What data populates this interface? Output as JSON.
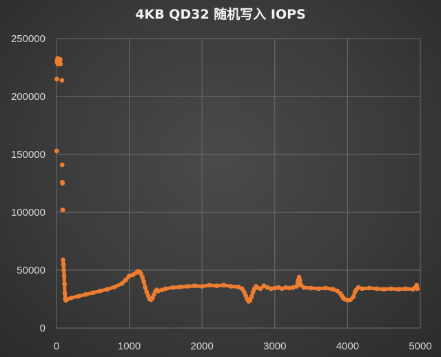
{
  "chart_data": {
    "type": "scatter",
    "title": "4KB QD32 随机写入 IOPS",
    "xlabel": "",
    "ylabel": "",
    "xlim": [
      0,
      5000
    ],
    "ylim": [
      0,
      250000
    ],
    "x_ticks": [
      0,
      1000,
      2000,
      3000,
      4000,
      5000
    ],
    "y_ticks": [
      0,
      50000,
      100000,
      150000,
      200000,
      250000
    ],
    "x_tick_labels": [
      "0",
      "1000",
      "2000",
      "3000",
      "4000",
      "5000"
    ],
    "y_tick_labels": [
      "0",
      "50000",
      "100000",
      "150000",
      "200000",
      "250000"
    ],
    "grid": true,
    "legend": "none",
    "series": [
      {
        "color": "#ed7d31",
        "points": [
          [
            2,
            153000
          ],
          [
            5,
            215000
          ],
          [
            8,
            230000
          ],
          [
            10,
            232000
          ],
          [
            12,
            229000
          ],
          [
            15,
            231000
          ],
          [
            18,
            233000
          ],
          [
            20,
            228000
          ],
          [
            22,
            230000
          ],
          [
            25,
            231000
          ],
          [
            28,
            232000
          ],
          [
            30,
            229000
          ],
          [
            35,
            230000
          ],
          [
            40,
            231000
          ],
          [
            45,
            230000
          ],
          [
            48,
            229000
          ],
          [
            50,
            232000
          ],
          [
            55,
            228000
          ],
          [
            75,
            214000
          ],
          [
            78,
            141000
          ],
          [
            80,
            126000
          ],
          [
            82,
            125000
          ],
          [
            85,
            102000
          ],
          [
            90,
            59000
          ],
          [
            95,
            55000
          ],
          [
            100,
            50000
          ],
          [
            105,
            45000
          ],
          [
            110,
            38000
          ],
          [
            115,
            30000
          ],
          [
            120,
            25000
          ],
          [
            130,
            24000
          ],
          [
            150,
            25000
          ],
          [
            200,
            26000
          ],
          [
            300,
            27500
          ],
          [
            400,
            29000
          ],
          [
            500,
            30500
          ],
          [
            600,
            32000
          ],
          [
            700,
            33500
          ],
          [
            800,
            35500
          ],
          [
            900,
            38500
          ],
          [
            950,
            41500
          ],
          [
            1000,
            45000
          ],
          [
            1050,
            46000
          ],
          [
            1100,
            48000
          ],
          [
            1120,
            49000
          ],
          [
            1140,
            48500
          ],
          [
            1160,
            47000
          ],
          [
            1180,
            44000
          ],
          [
            1200,
            40000
          ],
          [
            1220,
            35000
          ],
          [
            1240,
            31000
          ],
          [
            1260,
            28000
          ],
          [
            1280,
            25000
          ],
          [
            1300,
            24500
          ],
          [
            1320,
            26000
          ],
          [
            1340,
            29000
          ],
          [
            1360,
            32000
          ],
          [
            1380,
            33000
          ],
          [
            1400,
            32000
          ],
          [
            1450,
            33000
          ],
          [
            1500,
            34000
          ],
          [
            1600,
            35000
          ],
          [
            1700,
            35500
          ],
          [
            1800,
            36000
          ],
          [
            1900,
            36500
          ],
          [
            2000,
            36000
          ],
          [
            2100,
            37000
          ],
          [
            2200,
            36500
          ],
          [
            2300,
            37000
          ],
          [
            2400,
            36000
          ],
          [
            2500,
            35500
          ],
          [
            2550,
            34000
          ],
          [
            2580,
            31000
          ],
          [
            2600,
            28000
          ],
          [
            2620,
            25000
          ],
          [
            2640,
            23000
          ],
          [
            2660,
            24000
          ],
          [
            2680,
            27000
          ],
          [
            2700,
            31000
          ],
          [
            2720,
            34000
          ],
          [
            2740,
            36000
          ],
          [
            2760,
            35000
          ],
          [
            2800,
            34000
          ],
          [
            2850,
            36500
          ],
          [
            2900,
            35000
          ],
          [
            2950,
            34000
          ],
          [
            3000,
            34500
          ],
          [
            3050,
            35000
          ],
          [
            3100,
            34000
          ],
          [
            3150,
            35000
          ],
          [
            3200,
            34500
          ],
          [
            3250,
            35000
          ],
          [
            3300,
            36000
          ],
          [
            3320,
            41000
          ],
          [
            3335,
            44000
          ],
          [
            3345,
            41000
          ],
          [
            3360,
            37000
          ],
          [
            3400,
            35000
          ],
          [
            3500,
            34500
          ],
          [
            3600,
            34000
          ],
          [
            3700,
            34500
          ],
          [
            3800,
            33500
          ],
          [
            3860,
            32000
          ],
          [
            3900,
            30000
          ],
          [
            3920,
            28000
          ],
          [
            3940,
            26000
          ],
          [
            3960,
            25000
          ],
          [
            4000,
            24000
          ],
          [
            4040,
            24500
          ],
          [
            4080,
            27000
          ],
          [
            4100,
            31000
          ],
          [
            4120,
            33000
          ],
          [
            4150,
            35000
          ],
          [
            4200,
            34000
          ],
          [
            4300,
            34500
          ],
          [
            4400,
            34000
          ],
          [
            4500,
            33500
          ],
          [
            4600,
            34000
          ],
          [
            4700,
            33500
          ],
          [
            4800,
            34000
          ],
          [
            4900,
            33500
          ],
          [
            4950,
            37000
          ],
          [
            4960,
            34000
          ]
        ]
      }
    ]
  }
}
